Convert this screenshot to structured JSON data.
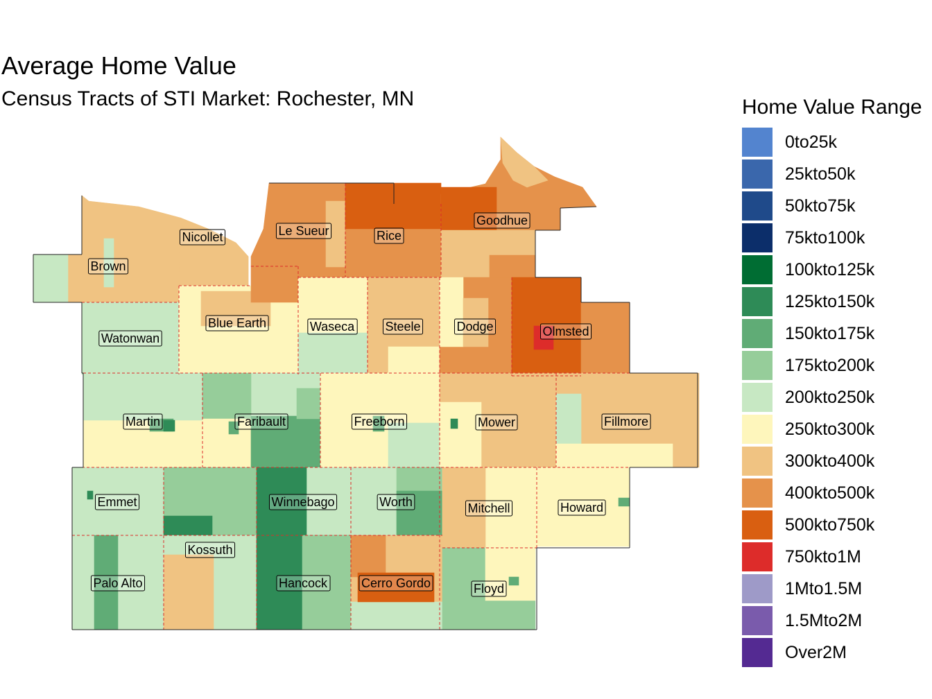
{
  "title": "Average Home Value",
  "subtitle": "Census Tracts of STI Market: Rochester, MN",
  "legend": {
    "title": "Home Value Range",
    "items": [
      {
        "label": "0to25k",
        "color": "#5384CF"
      },
      {
        "label": "25kto50k",
        "color": "#3A67AC"
      },
      {
        "label": "50kto75k",
        "color": "#1F4A8A"
      },
      {
        "label": "75kto100k",
        "color": "#0C2E6A"
      },
      {
        "label": "100kto125k",
        "color": "#006D33"
      },
      {
        "label": "125kto150k",
        "color": "#2E8B57"
      },
      {
        "label": "150kto175k",
        "color": "#60AC76"
      },
      {
        "label": "175kto200k",
        "color": "#96CD9A"
      },
      {
        "label": "200kto250k",
        "color": "#C7E8C3"
      },
      {
        "label": "250kto300k",
        "color": "#FEF6BC"
      },
      {
        "label": "300kto400k",
        "color": "#F0C382"
      },
      {
        "label": "400kto500k",
        "color": "#E5924B"
      },
      {
        "label": "500kto750k",
        "color": "#D95F11"
      },
      {
        "label": "750kto1M",
        "color": "#DD2C2A"
      },
      {
        "label": "1Mto1.5M",
        "color": "#9E9AC8"
      },
      {
        "label": "1.5Mto2M",
        "color": "#7A5BAC"
      },
      {
        "label": "Over2M",
        "color": "#542A92"
      }
    ]
  },
  "counties": [
    {
      "name": "Brown",
      "value_range": "300kto400k"
    },
    {
      "name": "Nicollet",
      "value_range": "300kto400k"
    },
    {
      "name": "Le Sueur",
      "value_range": "400kto500k"
    },
    {
      "name": "Rice",
      "value_range": "400kto500k"
    },
    {
      "name": "Goodhue",
      "value_range": "400kto500k"
    },
    {
      "name": "Watonwan",
      "value_range": "200kto250k"
    },
    {
      "name": "Blue Earth",
      "value_range": "250kto300k"
    },
    {
      "name": "Waseca",
      "value_range": "250kto300k"
    },
    {
      "name": "Steele",
      "value_range": "300kto400k"
    },
    {
      "name": "Dodge",
      "value_range": "400kto500k"
    },
    {
      "name": "Olmsted",
      "value_range": "500kto750k"
    },
    {
      "name": "Martin",
      "value_range": "250kto300k"
    },
    {
      "name": "Faribault",
      "value_range": "200kto250k"
    },
    {
      "name": "Freeborn",
      "value_range": "250kto300k"
    },
    {
      "name": "Mower",
      "value_range": "300kto400k"
    },
    {
      "name": "Fillmore",
      "value_range": "300kto400k"
    },
    {
      "name": "Emmet",
      "value_range": "200kto250k"
    },
    {
      "name": "Winnebago",
      "value_range": "125kto150k"
    },
    {
      "name": "Worth",
      "value_range": "200kto250k"
    },
    {
      "name": "Mitchell",
      "value_range": "250kto300k"
    },
    {
      "name": "Howard",
      "value_range": "250kto300k"
    },
    {
      "name": "Kossuth",
      "value_range": "175kto200k"
    },
    {
      "name": "Palo Alto",
      "value_range": "200kto250k"
    },
    {
      "name": "Hancock",
      "value_range": "125kto150k"
    },
    {
      "name": "Cerro Gordo",
      "value_range": "300kto400k"
    },
    {
      "name": "Floyd",
      "value_range": "175kto200k"
    }
  ]
}
